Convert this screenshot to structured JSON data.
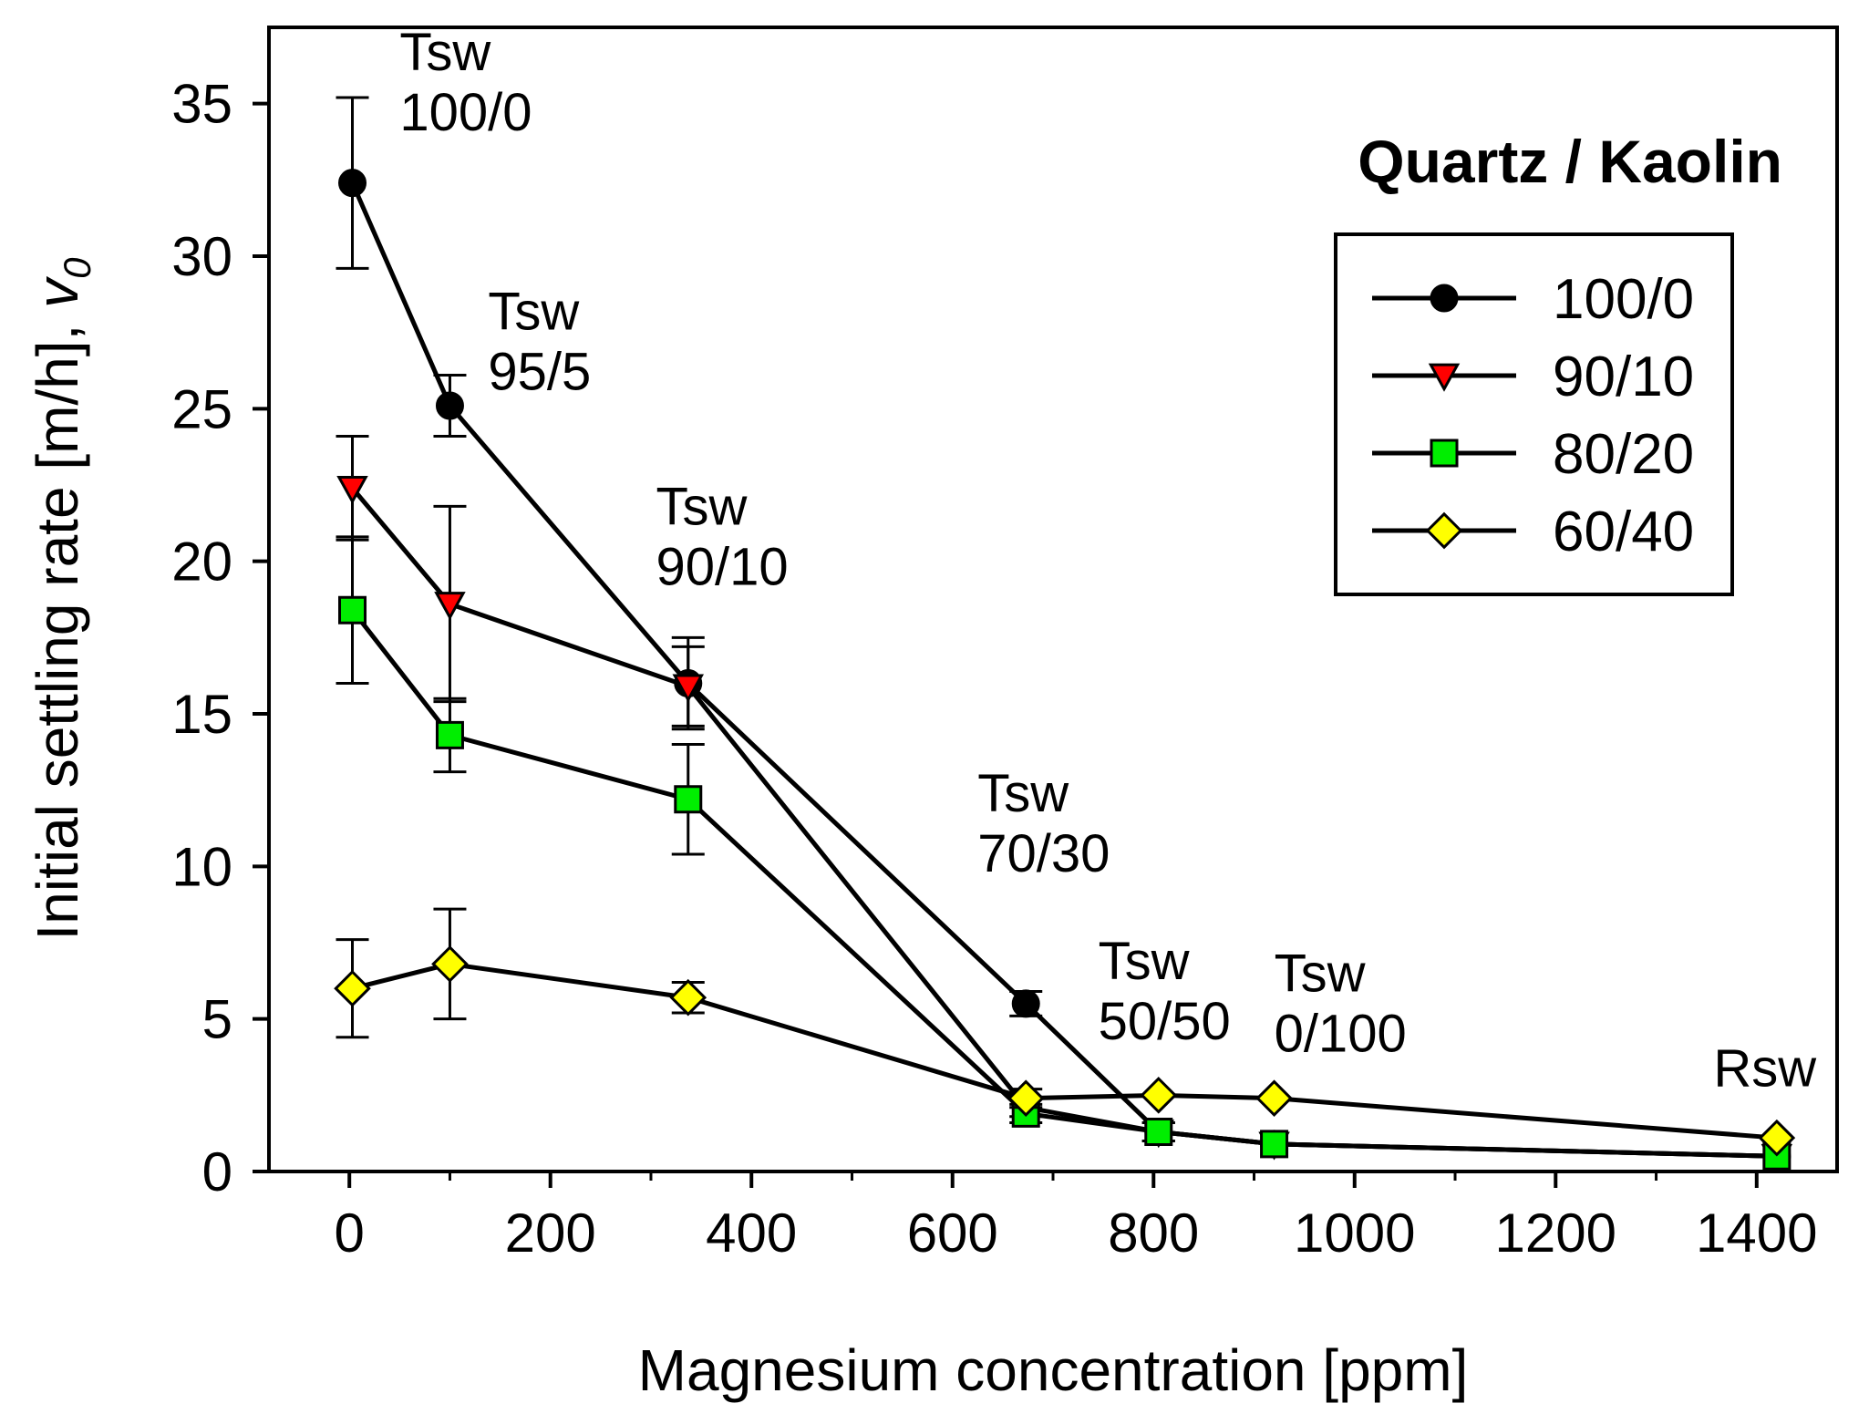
{
  "chart_data": {
    "type": "line",
    "title": "",
    "xlabel": "Magnesium concentration [ppm]",
    "ylabel_main": "Initial settling rate [m/h], ",
    "ylabel_symbol": "v",
    "ylabel_subscript": "0",
    "xlim": [
      -80,
      1480
    ],
    "ylim": [
      0,
      37.5
    ],
    "xticks": [
      0,
      200,
      400,
      600,
      800,
      1000,
      1200,
      1400
    ],
    "xtick_labels": [
      "0",
      "200",
      "400",
      "600",
      "800",
      "1000",
      "1200",
      "1400"
    ],
    "yticks": [
      0,
      5,
      10,
      15,
      20,
      25,
      30,
      35
    ],
    "ytick_labels": [
      "0",
      "5",
      "10",
      "15",
      "20",
      "25",
      "30",
      "35"
    ],
    "legend_title": "Quartz / Kaolin",
    "legend_position": "upper-right",
    "series": [
      {
        "name": "100/0",
        "marker": "circle",
        "color": "#000000",
        "x": [
          3,
          100,
          337,
          673,
          805,
          920,
          1420
        ],
        "y": [
          32.4,
          25.1,
          16.0,
          5.5,
          1.3,
          0.9,
          0.5
        ],
        "err": [
          2.8,
          1.0,
          1.5,
          0.4,
          0.3,
          0.2,
          0.1
        ]
      },
      {
        "name": "90/10",
        "marker": "triangle-down",
        "color": "#ff0000",
        "x": [
          3,
          100,
          337,
          673,
          805,
          920,
          1420
        ],
        "y": [
          22.4,
          18.6,
          15.9,
          2.1,
          1.3,
          0.9,
          0.5
        ],
        "err": [
          1.7,
          3.2,
          1.3,
          0.3,
          0.3,
          0.2,
          0.1
        ]
      },
      {
        "name": "80/20",
        "marker": "square",
        "color": "#00ee00",
        "x": [
          3,
          100,
          337,
          673,
          805,
          920,
          1420
        ],
        "y": [
          18.4,
          14.3,
          12.2,
          1.9,
          1.3,
          0.9,
          0.5
        ],
        "err": [
          2.4,
          1.2,
          1.8,
          0.3,
          0.3,
          0.2,
          0.1
        ]
      },
      {
        "name": "60/40",
        "marker": "diamond",
        "color": "#ffff00",
        "x": [
          3,
          100,
          337,
          673,
          805,
          920,
          1420
        ],
        "y": [
          6.0,
          6.8,
          5.7,
          2.4,
          2.5,
          2.4,
          1.1
        ],
        "err": [
          1.6,
          1.8,
          0.5,
          0.3,
          0.2,
          0.2,
          0.1
        ]
      }
    ],
    "annotations": [
      {
        "id": "tsw-100-0",
        "x": 50,
        "y": 36.1,
        "lines": [
          "Tsw",
          "100/0"
        ]
      },
      {
        "id": "tsw-95-5",
        "x": 138,
        "y": 27.6,
        "lines": [
          "Tsw",
          "95/5"
        ]
      },
      {
        "id": "tsw-90-10",
        "x": 305,
        "y": 21.2,
        "lines": [
          "Tsw",
          "90/10"
        ]
      },
      {
        "id": "tsw-70-30",
        "x": 625,
        "y": 11.8,
        "lines": [
          "Tsw",
          "70/30"
        ]
      },
      {
        "id": "tsw-50-50",
        "x": 745,
        "y": 6.3,
        "lines": [
          "Tsw",
          "50/50"
        ]
      },
      {
        "id": "tsw-0-100",
        "x": 920,
        "y": 5.9,
        "lines": [
          "Tsw",
          "0/100"
        ]
      },
      {
        "id": "rsw",
        "x": 1357,
        "y": 2.8,
        "lines": [
          "Rsw"
        ]
      }
    ]
  }
}
